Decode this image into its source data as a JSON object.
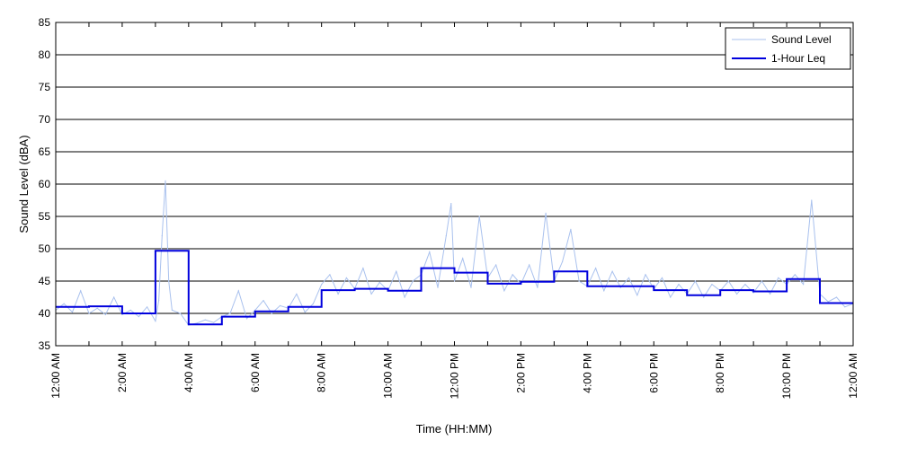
{
  "chart_data": {
    "type": "line",
    "title": "",
    "xlabel": "Time (HH:MM)",
    "ylabel": "Sound Level (dBA)",
    "ylim": [
      35,
      85
    ],
    "xlim_hours": [
      0,
      24
    ],
    "yticks": [
      35,
      40,
      45,
      50,
      55,
      60,
      65,
      70,
      75,
      80,
      85
    ],
    "xtick_hours": [
      0,
      2,
      4,
      6,
      8,
      10,
      12,
      14,
      16,
      18,
      20,
      22,
      24
    ],
    "xtick_labels": [
      "12:00 AM",
      "2:00 AM",
      "4:00 AM",
      "6:00 AM",
      "8:00 AM",
      "10:00 AM",
      "12:00 PM",
      "2:00 PM",
      "4:00 PM",
      "6:00 PM",
      "8:00 PM",
      "10:00 PM",
      "12:00 AM"
    ],
    "grid": "horizontal",
    "legend_position": "top-right",
    "series": [
      {
        "name": "Sound Level",
        "color": "#a9c1ee",
        "style": "thin-line",
        "points": [
          [
            0.0,
            40.5
          ],
          [
            0.25,
            41.5
          ],
          [
            0.5,
            40.2
          ],
          [
            0.75,
            43.5
          ],
          [
            1.0,
            40.0
          ],
          [
            1.25,
            40.8
          ],
          [
            1.5,
            39.8
          ],
          [
            1.75,
            42.5
          ],
          [
            2.0,
            39.8
          ],
          [
            2.25,
            40.5
          ],
          [
            2.5,
            39.5
          ],
          [
            2.75,
            41.0
          ],
          [
            3.0,
            38.8
          ],
          [
            3.1,
            42.0
          ],
          [
            3.2,
            52.0
          ],
          [
            3.3,
            60.5
          ],
          [
            3.4,
            45.0
          ],
          [
            3.5,
            40.5
          ],
          [
            3.75,
            40.0
          ],
          [
            4.0,
            38.2
          ],
          [
            4.25,
            38.5
          ],
          [
            4.5,
            39.0
          ],
          [
            4.75,
            38.6
          ],
          [
            5.0,
            39.5
          ],
          [
            5.25,
            40.0
          ],
          [
            5.5,
            43.5
          ],
          [
            5.75,
            39.2
          ],
          [
            6.0,
            40.5
          ],
          [
            6.25,
            42.0
          ],
          [
            6.5,
            40.0
          ],
          [
            6.75,
            41.2
          ],
          [
            7.0,
            40.8
          ],
          [
            7.25,
            43.0
          ],
          [
            7.5,
            40.2
          ],
          [
            7.75,
            41.5
          ],
          [
            8.0,
            44.5
          ],
          [
            8.25,
            46.0
          ],
          [
            8.5,
            43.0
          ],
          [
            8.75,
            45.5
          ],
          [
            9.0,
            43.8
          ],
          [
            9.25,
            47.0
          ],
          [
            9.5,
            43.0
          ],
          [
            9.75,
            44.8
          ],
          [
            10.0,
            43.5
          ],
          [
            10.25,
            46.5
          ],
          [
            10.5,
            42.5
          ],
          [
            10.75,
            45.0
          ],
          [
            11.0,
            46.0
          ],
          [
            11.25,
            49.5
          ],
          [
            11.5,
            44.0
          ],
          [
            11.75,
            52.0
          ],
          [
            11.9,
            57.0
          ],
          [
            12.0,
            45.0
          ],
          [
            12.25,
            48.5
          ],
          [
            12.5,
            44.0
          ],
          [
            12.75,
            55.0
          ],
          [
            13.0,
            45.5
          ],
          [
            13.25,
            47.5
          ],
          [
            13.5,
            43.5
          ],
          [
            13.75,
            46.0
          ],
          [
            14.0,
            44.5
          ],
          [
            14.25,
            47.5
          ],
          [
            14.5,
            44.0
          ],
          [
            14.75,
            55.5
          ],
          [
            15.0,
            45.0
          ],
          [
            15.25,
            48.0
          ],
          [
            15.5,
            53.0
          ],
          [
            15.75,
            45.0
          ],
          [
            16.0,
            44.2
          ],
          [
            16.25,
            47.0
          ],
          [
            16.5,
            43.5
          ],
          [
            16.75,
            46.5
          ],
          [
            17.0,
            44.0
          ],
          [
            17.25,
            45.5
          ],
          [
            17.5,
            42.8
          ],
          [
            17.75,
            46.0
          ],
          [
            18.0,
            43.8
          ],
          [
            18.25,
            45.5
          ],
          [
            18.5,
            42.5
          ],
          [
            18.75,
            44.5
          ],
          [
            19.0,
            43.0
          ],
          [
            19.25,
            45.0
          ],
          [
            19.5,
            42.5
          ],
          [
            19.75,
            44.5
          ],
          [
            20.0,
            43.5
          ],
          [
            20.25,
            45.0
          ],
          [
            20.5,
            43.0
          ],
          [
            20.75,
            44.5
          ],
          [
            21.0,
            43.2
          ],
          [
            21.25,
            45.0
          ],
          [
            21.5,
            43.0
          ],
          [
            21.75,
            45.5
          ],
          [
            22.0,
            44.5
          ],
          [
            22.25,
            46.0
          ],
          [
            22.5,
            44.5
          ],
          [
            22.75,
            57.5
          ],
          [
            23.0,
            43.0
          ],
          [
            23.25,
            41.8
          ],
          [
            23.5,
            42.5
          ],
          [
            23.75,
            41.0
          ],
          [
            24.0,
            41.5
          ]
        ]
      },
      {
        "name": "1-Hour Leq",
        "color": "#0000dd",
        "style": "step",
        "hours": [
          0,
          1,
          2,
          3,
          4,
          5,
          6,
          7,
          8,
          9,
          10,
          11,
          12,
          13,
          14,
          15,
          16,
          17,
          18,
          19,
          20,
          21,
          22,
          23
        ],
        "values": [
          41.0,
          41.1,
          40.0,
          49.7,
          38.3,
          39.5,
          40.3,
          41.0,
          43.6,
          43.8,
          43.5,
          47.0,
          46.3,
          44.6,
          44.9,
          46.5,
          44.2,
          44.2,
          43.6,
          42.8,
          43.6,
          43.4,
          45.3,
          41.6
        ]
      }
    ]
  }
}
